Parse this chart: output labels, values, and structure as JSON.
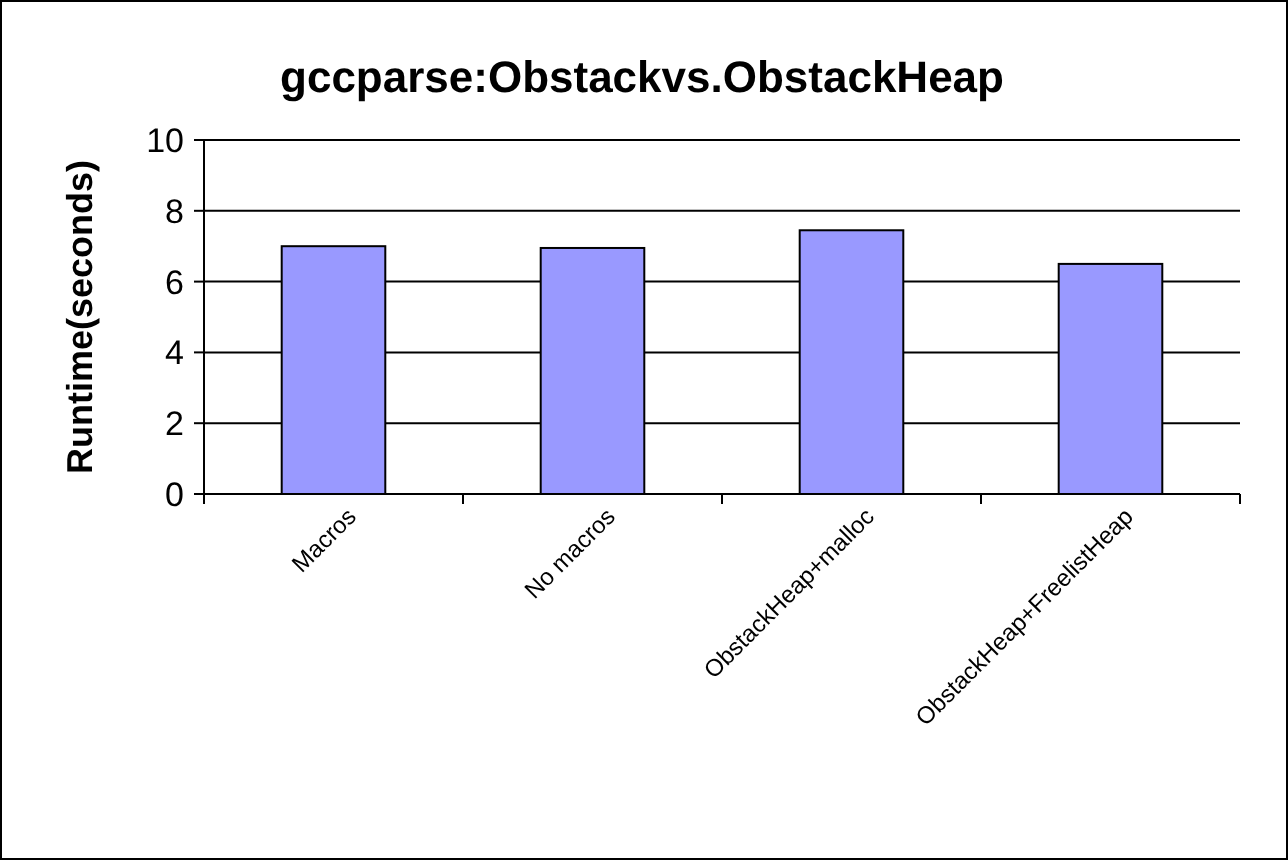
{
  "chart_data": {
    "type": "bar",
    "title": "gccparse:Obstackvs.ObstackHeap",
    "ylabel": "Runtime(seconds)",
    "categories": [
      "Macros",
      "No macros",
      "ObstackHeap+malloc",
      "ObstackHeap+FreelistHeap"
    ],
    "values": [
      7.0,
      6.95,
      7.45,
      6.5
    ],
    "color": "#9999ff",
    "ylim": [
      0,
      10
    ],
    "yticks": [
      0,
      2,
      4,
      6,
      8,
      10
    ],
    "grid": "y"
  }
}
